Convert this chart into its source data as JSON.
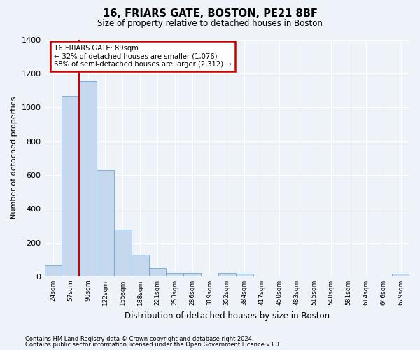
{
  "title": "16, FRIARS GATE, BOSTON, PE21 8BF",
  "subtitle": "Size of property relative to detached houses in Boston",
  "xlabel": "Distribution of detached houses by size in Boston",
  "ylabel": "Number of detached properties",
  "footnote1": "Contains HM Land Registry data © Crown copyright and database right 2024.",
  "footnote2": "Contains public sector information licensed under the Open Government Licence v3.0.",
  "annotation_line1": "16 FRIARS GATE: 89sqm",
  "annotation_line2": "← 32% of detached houses are smaller (1,076)",
  "annotation_line3": "68% of semi-detached houses are larger (2,312) →",
  "bar_color": "#c5d8ee",
  "bar_edge_color": "#6fa8d0",
  "ref_line_color": "#cc0000",
  "annotation_box_color": "#cc0000",
  "bg_color": "#eef2f9",
  "grid_color": "#ffffff",
  "ylim": [
    0,
    1400
  ],
  "categories": [
    "24sqm",
    "57sqm",
    "90sqm",
    "122sqm",
    "155sqm",
    "188sqm",
    "221sqm",
    "253sqm",
    "286sqm",
    "319sqm",
    "352sqm",
    "384sqm",
    "417sqm",
    "450sqm",
    "483sqm",
    "515sqm",
    "548sqm",
    "581sqm",
    "614sqm",
    "646sqm",
    "679sqm"
  ],
  "values": [
    65,
    1068,
    1155,
    630,
    275,
    128,
    48,
    22,
    22,
    0,
    22,
    15,
    0,
    0,
    0,
    0,
    0,
    0,
    0,
    0,
    15
  ],
  "ref_bar_index": 2,
  "ref_line_x": 1.5
}
